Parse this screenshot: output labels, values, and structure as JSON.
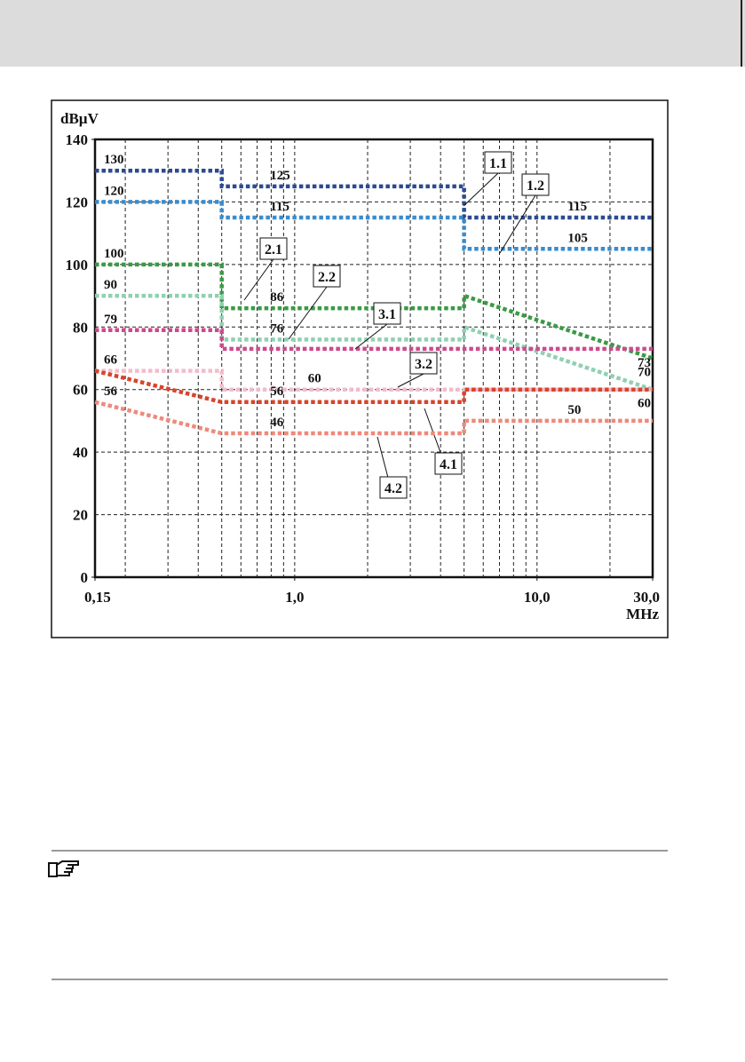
{
  "chart_data": {
    "type": "line",
    "x_label": "MHz",
    "y_label": "dBµV",
    "log_x": true,
    "grid": true,
    "xlim": [
      0.15,
      30
    ],
    "ylim": [
      0,
      140
    ],
    "xticks": [
      {
        "value": 0.15,
        "label": "0,15"
      },
      {
        "value": 1,
        "label": "1,0"
      },
      {
        "value": 10,
        "label": "10,0"
      },
      {
        "value": 30,
        "label": "30,0"
      }
    ],
    "xminor": [
      0.2,
      0.3,
      0.4,
      0.5,
      0.6,
      0.7,
      0.8,
      0.9,
      1,
      2,
      3,
      4,
      5,
      6,
      7,
      8,
      9,
      10,
      20
    ],
    "yticks": [
      0,
      20,
      40,
      60,
      80,
      100,
      120,
      140
    ],
    "series": [
      {
        "name": "1.1",
        "color": "#2c4a90",
        "x": [
          0.15,
          0.5,
          0.5,
          5,
          5,
          30
        ],
        "values": [
          130,
          130,
          125,
          125,
          115,
          115
        ],
        "value_labels": [
          "130",
          null,
          "125",
          null,
          "115",
          null
        ]
      },
      {
        "name": "1.2",
        "color": "#3a8ccc",
        "x": [
          0.15,
          0.5,
          0.5,
          5,
          5,
          30
        ],
        "values": [
          120,
          120,
          115,
          115,
          105,
          105
        ],
        "value_labels": [
          "120",
          null,
          "115",
          null,
          "105",
          null
        ]
      },
      {
        "name": "2.1",
        "color": "#3a9a44",
        "x": [
          0.15,
          0.5,
          0.5,
          5,
          5,
          30
        ],
        "values": [
          100,
          100,
          86,
          86,
          90,
          70
        ],
        "value_labels": [
          "100",
          null,
          "86",
          null,
          null,
          "70"
        ]
      },
      {
        "name": "2.2",
        "color": "#8fd0b2",
        "x": [
          0.15,
          0.5,
          0.5,
          5,
          5,
          30
        ],
        "values": [
          90,
          90,
          76,
          76,
          80,
          60
        ],
        "value_labels": [
          "90",
          null,
          "76",
          null,
          null,
          "60"
        ]
      },
      {
        "name": "3.1",
        "color": "#cc4a8c",
        "x": [
          0.15,
          0.5,
          0.5,
          30
        ],
        "values": [
          79,
          79,
          73,
          73
        ],
        "value_labels": [
          "79",
          null,
          null,
          "73"
        ]
      },
      {
        "name": "3.2",
        "color": "#f2bccb",
        "x": [
          0.15,
          0.5,
          0.5,
          30
        ],
        "values": [
          66,
          66,
          60,
          60
        ],
        "value_labels": [
          "66",
          null,
          "60",
          null
        ]
      },
      {
        "name": "4.1",
        "color": "#d8442a",
        "x": [
          0.15,
          0.5,
          5,
          5,
          30
        ],
        "values": [
          66,
          56,
          56,
          60,
          60
        ],
        "value_labels": [
          null,
          "56",
          null,
          null,
          null
        ]
      },
      {
        "name": "4.2",
        "color": "#ee8a7a",
        "x": [
          0.15,
          0.5,
          5,
          5,
          30
        ],
        "values": [
          56,
          46,
          46,
          50,
          50
        ],
        "value_labels": [
          "56",
          "46",
          null,
          "50",
          null
        ]
      }
    ]
  }
}
